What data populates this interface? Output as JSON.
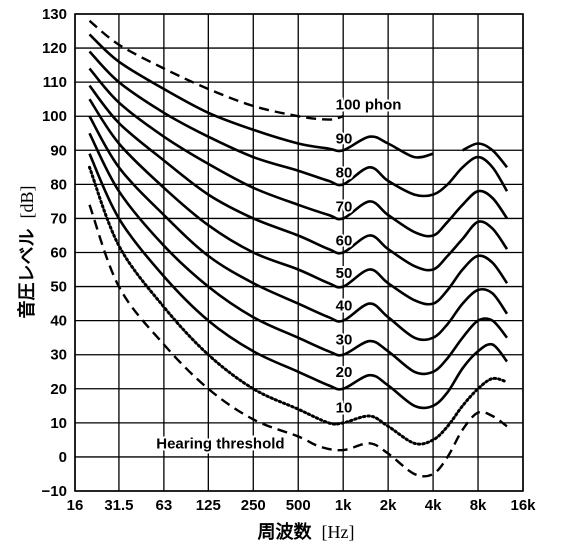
{
  "chart_data": {
    "type": "line",
    "xlabel": {
      "jp": "周波数",
      "unit": "[Hz]"
    },
    "ylabel": {
      "jp": "音圧レベル",
      "unit": "[dB]"
    },
    "xscale": "log",
    "xlim": [
      16,
      16000
    ],
    "ylim": [
      -10,
      130
    ],
    "x_ticks": [
      {
        "value": 16,
        "label": "16"
      },
      {
        "value": 31.5,
        "label": "31.5"
      },
      {
        "value": 63,
        "label": "63"
      },
      {
        "value": 125,
        "label": "125"
      },
      {
        "value": 250,
        "label": "250"
      },
      {
        "value": 500,
        "label": "500"
      },
      {
        "value": 1000,
        "label": "1k"
      },
      {
        "value": 2000,
        "label": "2k"
      },
      {
        "value": 4000,
        "label": "4k"
      },
      {
        "value": 8000,
        "label": "8k"
      },
      {
        "value": 16000,
        "label": "16k"
      }
    ],
    "y_ticks": [
      {
        "value": -10,
        "label": "−10"
      },
      {
        "value": 0,
        "label": "0"
      },
      {
        "value": 10,
        "label": "10"
      },
      {
        "value": 20,
        "label": "20"
      },
      {
        "value": 30,
        "label": "30"
      },
      {
        "value": 40,
        "label": "40"
      },
      {
        "value": 50,
        "label": "50"
      },
      {
        "value": 60,
        "label": "60"
      },
      {
        "value": 70,
        "label": "70"
      },
      {
        "value": 80,
        "label": "80"
      },
      {
        "value": 90,
        "label": "90"
      },
      {
        "value": 100,
        "label": "100"
      },
      {
        "value": 110,
        "label": "110"
      },
      {
        "value": 120,
        "label": "120"
      },
      {
        "value": 130,
        "label": "130"
      }
    ],
    "grid": true,
    "series": [
      {
        "label": "Hearing threshold",
        "style": "dashed",
        "points": [
          [
            20,
            74
          ],
          [
            31.5,
            50
          ],
          [
            63,
            33
          ],
          [
            125,
            20
          ],
          [
            250,
            11
          ],
          [
            500,
            6
          ],
          [
            700,
            3
          ],
          [
            1000,
            2
          ],
          [
            1500,
            4
          ],
          [
            2000,
            1
          ],
          [
            3000,
            -5
          ],
          [
            4000,
            -5
          ],
          [
            5000,
            0
          ],
          [
            6300,
            8
          ],
          [
            8000,
            13
          ],
          [
            10000,
            12
          ],
          [
            12500,
            9
          ]
        ]
      },
      {
        "label": "10",
        "style": "dotted",
        "points": [
          [
            20,
            85
          ],
          [
            31.5,
            62
          ],
          [
            63,
            44
          ],
          [
            125,
            30
          ],
          [
            250,
            20
          ],
          [
            500,
            14
          ],
          [
            800,
            10
          ],
          [
            1000,
            10
          ],
          [
            1500,
            12
          ],
          [
            2000,
            9
          ],
          [
            3000,
            4
          ],
          [
            4000,
            5
          ],
          [
            5000,
            9
          ],
          [
            6300,
            15
          ],
          [
            8000,
            20
          ],
          [
            10000,
            23
          ],
          [
            12500,
            22
          ]
        ]
      },
      {
        "label": "20",
        "style": "solid",
        "points": [
          [
            20,
            89
          ],
          [
            31.5,
            70
          ],
          [
            63,
            53
          ],
          [
            125,
            40
          ],
          [
            250,
            31
          ],
          [
            500,
            25
          ],
          [
            800,
            21
          ],
          [
            1000,
            20
          ],
          [
            1500,
            24
          ],
          [
            2000,
            21
          ],
          [
            3000,
            15
          ],
          [
            4000,
            15
          ],
          [
            5000,
            19
          ],
          [
            6300,
            26
          ],
          [
            8000,
            31
          ],
          [
            10000,
            33
          ],
          [
            12500,
            28
          ]
        ]
      },
      {
        "label": "30",
        "style": "solid",
        "points": [
          [
            20,
            95
          ],
          [
            31.5,
            78
          ],
          [
            63,
            62
          ],
          [
            125,
            50
          ],
          [
            250,
            41
          ],
          [
            500,
            35
          ],
          [
            800,
            31
          ],
          [
            1000,
            30
          ],
          [
            1500,
            34
          ],
          [
            2000,
            31
          ],
          [
            3000,
            25
          ],
          [
            4000,
            25
          ],
          [
            5000,
            29
          ],
          [
            6300,
            35
          ],
          [
            8000,
            40
          ],
          [
            10000,
            40
          ],
          [
            12500,
            35
          ]
        ]
      },
      {
        "label": "40",
        "style": "solid",
        "points": [
          [
            20,
            100
          ],
          [
            31.5,
            85
          ],
          [
            63,
            71
          ],
          [
            125,
            59
          ],
          [
            250,
            51
          ],
          [
            500,
            45
          ],
          [
            800,
            41
          ],
          [
            1000,
            40
          ],
          [
            1500,
            45
          ],
          [
            2000,
            41
          ],
          [
            3000,
            35
          ],
          [
            4000,
            35
          ],
          [
            5000,
            39
          ],
          [
            6300,
            45
          ],
          [
            8000,
            49
          ],
          [
            10000,
            48
          ],
          [
            12500,
            42
          ]
        ]
      },
      {
        "label": "50",
        "style": "solid",
        "points": [
          [
            20,
            105
          ],
          [
            31.5,
            92
          ],
          [
            63,
            79
          ],
          [
            125,
            68
          ],
          [
            250,
            60
          ],
          [
            500,
            55
          ],
          [
            800,
            51
          ],
          [
            1000,
            50
          ],
          [
            1500,
            55
          ],
          [
            2000,
            51
          ],
          [
            3000,
            46
          ],
          [
            4000,
            45
          ],
          [
            5000,
            49
          ],
          [
            6300,
            55
          ],
          [
            8000,
            59
          ],
          [
            10000,
            57
          ],
          [
            12500,
            51
          ]
        ]
      },
      {
        "label": "60",
        "style": "solid",
        "points": [
          [
            20,
            109
          ],
          [
            31.5,
            98
          ],
          [
            63,
            87
          ],
          [
            125,
            77
          ],
          [
            250,
            70
          ],
          [
            500,
            65
          ],
          [
            800,
            61
          ],
          [
            1000,
            60
          ],
          [
            1500,
            65
          ],
          [
            2000,
            61
          ],
          [
            3000,
            56
          ],
          [
            4000,
            55
          ],
          [
            5000,
            59
          ],
          [
            6300,
            64
          ],
          [
            8000,
            69
          ],
          [
            10000,
            67
          ],
          [
            12500,
            61
          ]
        ]
      },
      {
        "label": "70",
        "style": "solid",
        "points": [
          [
            20,
            114
          ],
          [
            31.5,
            104
          ],
          [
            63,
            94
          ],
          [
            125,
            86
          ],
          [
            250,
            79
          ],
          [
            500,
            74
          ],
          [
            800,
            71
          ],
          [
            1000,
            70
          ],
          [
            1500,
            75
          ],
          [
            2000,
            71
          ],
          [
            3000,
            66
          ],
          [
            4000,
            65
          ],
          [
            5000,
            69
          ],
          [
            6300,
            74
          ],
          [
            8000,
            78
          ],
          [
            10000,
            76
          ],
          [
            12500,
            70
          ]
        ]
      },
      {
        "label": "80",
        "style": "solid",
        "points": [
          [
            20,
            119
          ],
          [
            31.5,
            110
          ],
          [
            63,
            101
          ],
          [
            125,
            94
          ],
          [
            250,
            88
          ],
          [
            500,
            84
          ],
          [
            800,
            81
          ],
          [
            1000,
            80
          ],
          [
            1500,
            85
          ],
          [
            2000,
            81
          ],
          [
            3000,
            77
          ],
          [
            4000,
            77
          ],
          [
            5000,
            80
          ],
          [
            6300,
            85
          ],
          [
            8000,
            88
          ],
          [
            10000,
            85
          ],
          [
            12500,
            78
          ]
        ]
      },
      {
        "label": "90",
        "style": "solid",
        "points": [
          [
            20,
            124
          ],
          [
            31.5,
            116
          ],
          [
            63,
            108
          ],
          [
            125,
            101
          ],
          [
            250,
            96
          ],
          [
            500,
            92
          ],
          [
            800,
            90.5
          ],
          [
            1000,
            90
          ],
          [
            1500,
            94
          ],
          [
            2000,
            92
          ],
          [
            3000,
            88
          ],
          [
            4000,
            89
          ]
        ],
        "points2": [
          [
            6300,
            90
          ],
          [
            8000,
            92
          ],
          [
            10000,
            90
          ],
          [
            12500,
            85
          ]
        ]
      },
      {
        "label": "100 phon",
        "style": "dashed",
        "points": [
          [
            20,
            128
          ],
          [
            31.5,
            121
          ],
          [
            63,
            114
          ],
          [
            125,
            108
          ],
          [
            250,
            103
          ],
          [
            500,
            100
          ],
          [
            800,
            99
          ],
          [
            1000,
            100
          ]
        ]
      }
    ],
    "curve_labels": [
      {
        "text": "100 phon",
        "x": 890,
        "y": 102
      },
      {
        "text": "90",
        "x": 890,
        "y": 92
      },
      {
        "text": "80",
        "x": 890,
        "y": 82
      },
      {
        "text": "70",
        "x": 890,
        "y": 72
      },
      {
        "text": "60",
        "x": 890,
        "y": 62
      },
      {
        "text": "50",
        "x": 890,
        "y": 52.5
      },
      {
        "text": "40",
        "x": 890,
        "y": 43
      },
      {
        "text": "30",
        "x": 890,
        "y": 33
      },
      {
        "text": "20",
        "x": 890,
        "y": 23.5
      },
      {
        "text": "10",
        "x": 890,
        "y": 13
      },
      {
        "text": "Hearing threshold",
        "x": 56,
        "y": 2.5
      }
    ]
  }
}
